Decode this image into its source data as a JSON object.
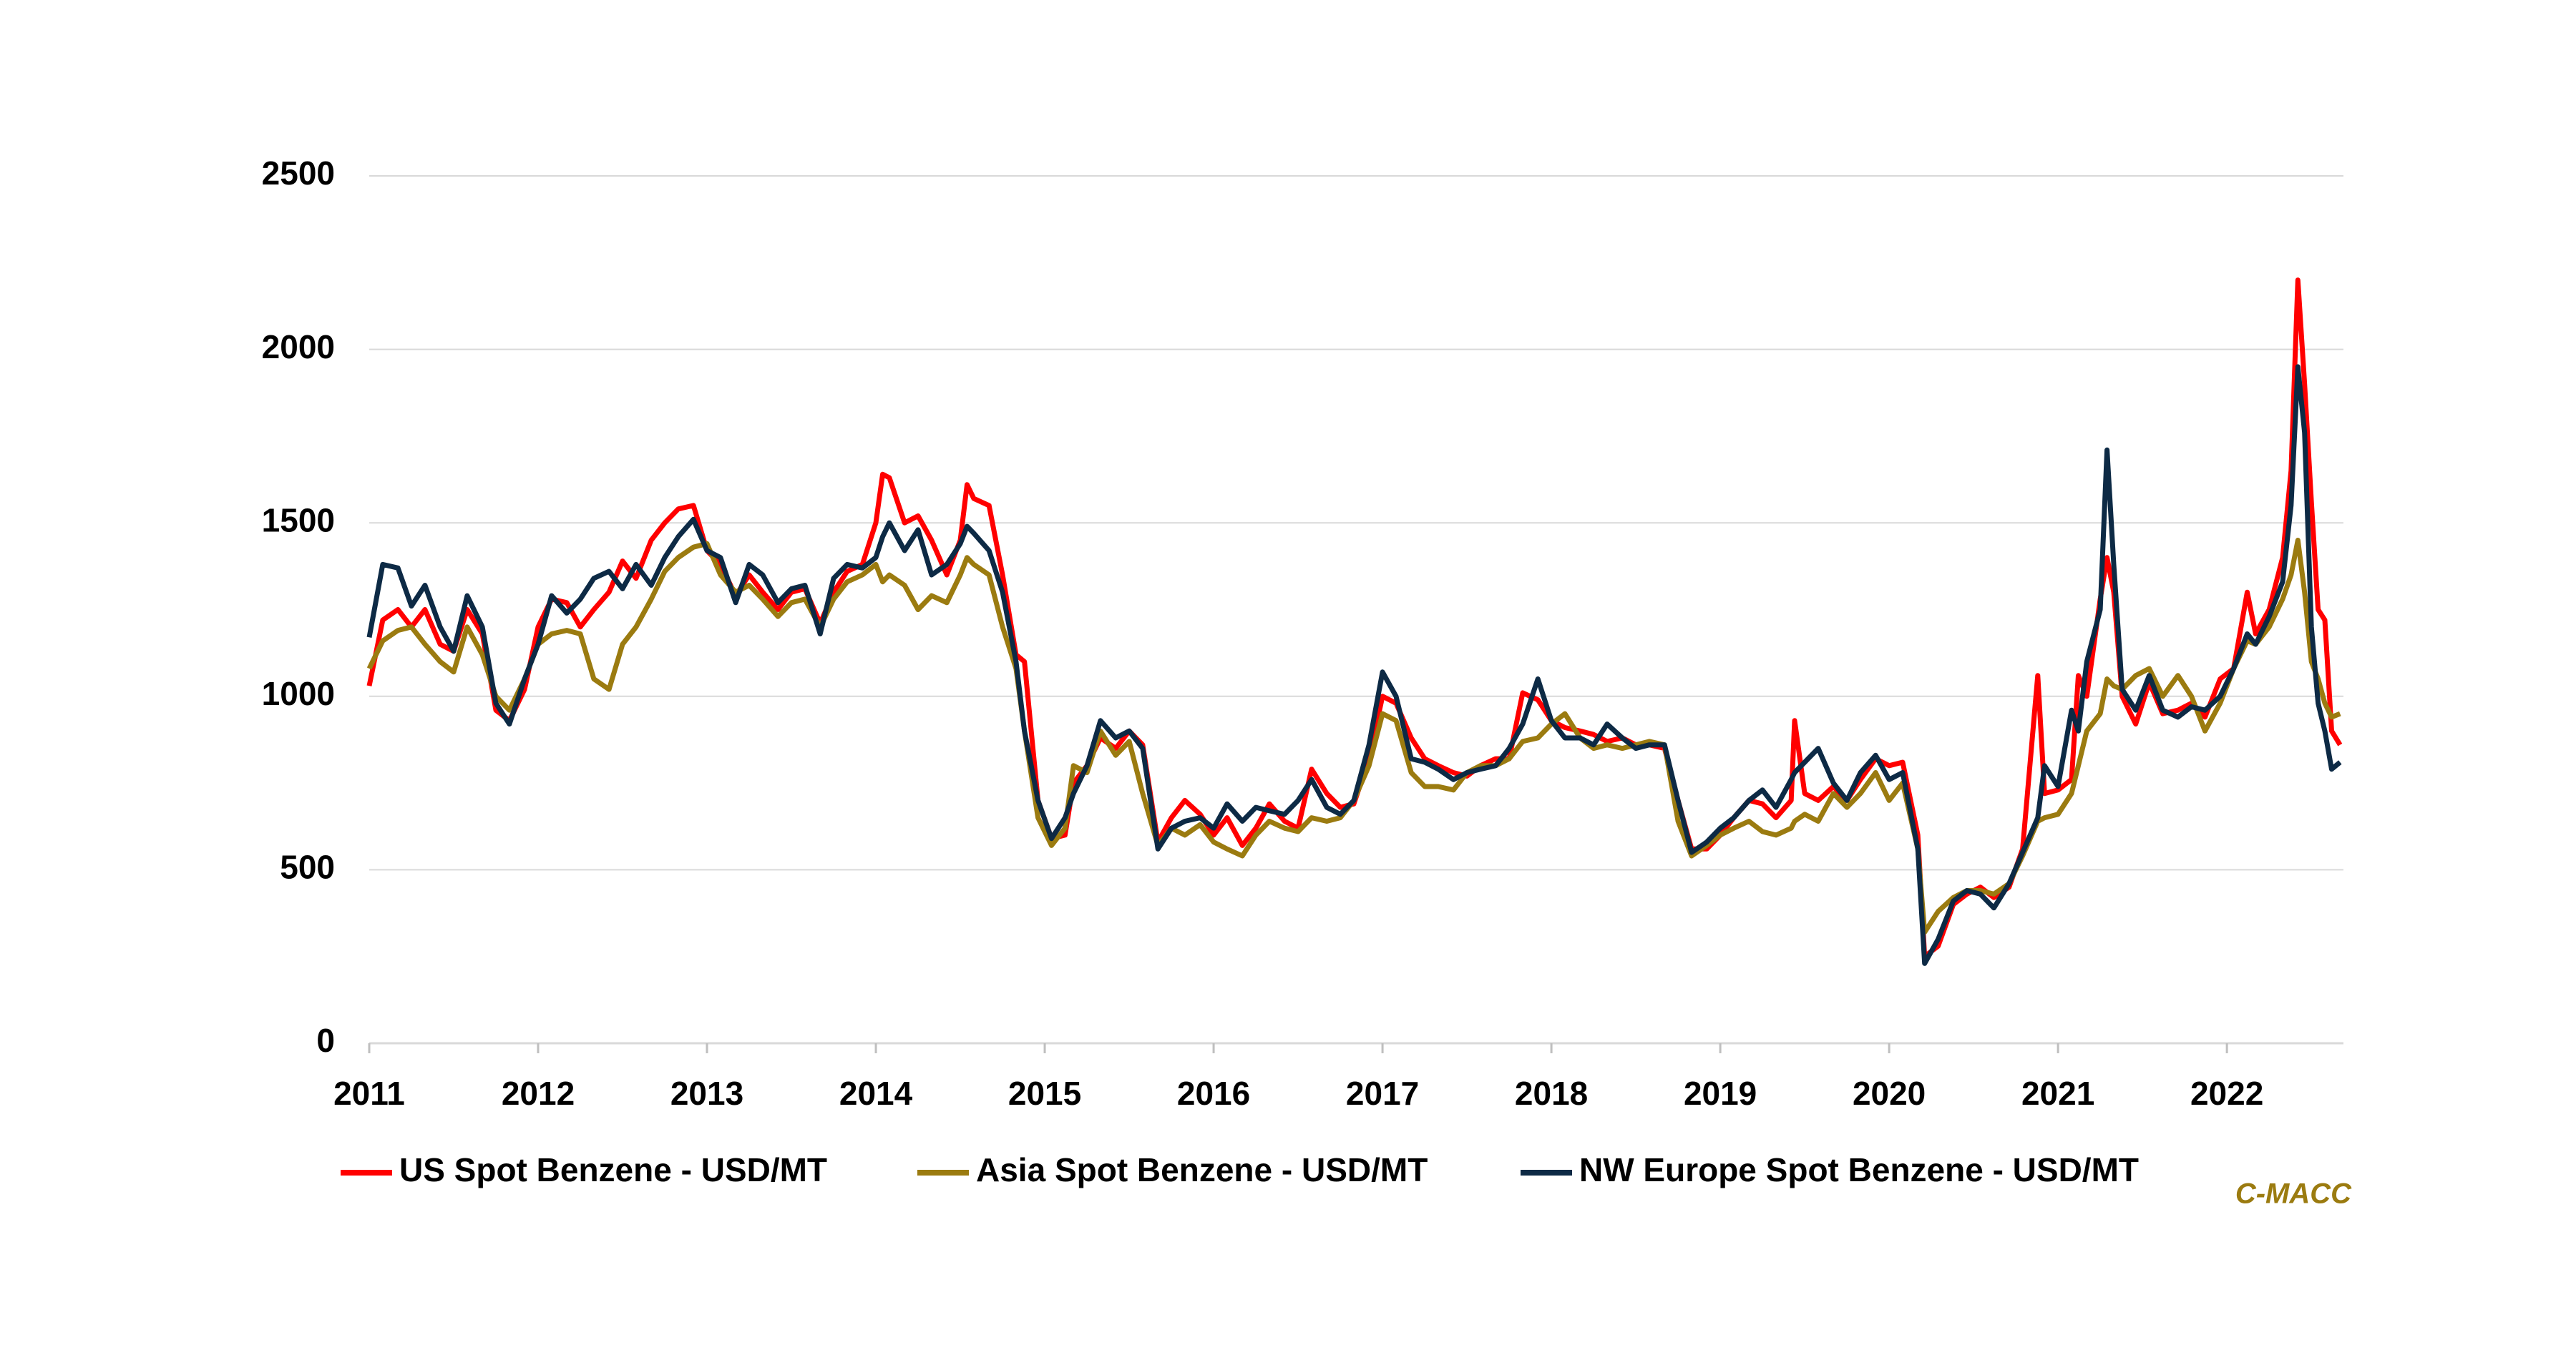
{
  "chart_data": {
    "type": "line",
    "source": "C-MACC",
    "x": [
      2011.0,
      2011.08,
      2011.17,
      2011.25,
      2011.33,
      2011.42,
      2011.5,
      2011.58,
      2011.67,
      2011.75,
      2011.83,
      2011.92,
      2012.0,
      2012.08,
      2012.17,
      2012.25,
      2012.33,
      2012.42,
      2012.5,
      2012.58,
      2012.67,
      2012.75,
      2012.83,
      2012.92,
      2013.0,
      2013.08,
      2013.17,
      2013.25,
      2013.33,
      2013.42,
      2013.5,
      2013.58,
      2013.67,
      2013.75,
      2013.83,
      2013.92,
      2014.0,
      2014.04,
      2014.08,
      2014.17,
      2014.25,
      2014.33,
      2014.42,
      2014.5,
      2014.54,
      2014.58,
      2014.67,
      2014.75,
      2014.83,
      2014.88,
      2014.96,
      2015.04,
      2015.12,
      2015.17,
      2015.25,
      2015.33,
      2015.42,
      2015.5,
      2015.58,
      2015.67,
      2015.75,
      2015.83,
      2015.92,
      2016.0,
      2016.08,
      2016.17,
      2016.25,
      2016.33,
      2016.42,
      2016.5,
      2016.58,
      2016.67,
      2016.75,
      2016.83,
      2016.92,
      2017.0,
      2017.08,
      2017.17,
      2017.25,
      2017.33,
      2017.42,
      2017.5,
      2017.58,
      2017.67,
      2017.75,
      2017.83,
      2017.92,
      2018.0,
      2018.08,
      2018.17,
      2018.25,
      2018.33,
      2018.42,
      2018.5,
      2018.58,
      2018.67,
      2018.75,
      2018.83,
      2018.92,
      2019.0,
      2019.08,
      2019.17,
      2019.25,
      2019.33,
      2019.42,
      2019.44,
      2019.5,
      2019.58,
      2019.67,
      2019.75,
      2019.83,
      2019.92,
      2020.0,
      2020.08,
      2020.17,
      2020.21,
      2020.29,
      2020.38,
      2020.46,
      2020.54,
      2020.62,
      2020.71,
      2020.79,
      2020.88,
      2020.92,
      2021.0,
      2021.08,
      2021.12,
      2021.17,
      2021.25,
      2021.29,
      2021.33,
      2021.38,
      2021.46,
      2021.54,
      2021.62,
      2021.71,
      2021.79,
      2021.87,
      2021.96,
      2022.04,
      2022.12,
      2022.17,
      2022.25,
      2022.33,
      2022.38,
      2022.42,
      2022.46,
      2022.5,
      2022.54,
      2022.58,
      2022.62,
      2022.67
    ],
    "series": [
      {
        "name": "US Spot Benzene - USD/MT",
        "color": "#ff0000",
        "values": [
          1030,
          1220,
          1250,
          1200,
          1250,
          1150,
          1130,
          1250,
          1180,
          960,
          930,
          1020,
          1200,
          1280,
          1270,
          1200,
          1250,
          1300,
          1390,
          1340,
          1450,
          1500,
          1540,
          1550,
          1420,
          1380,
          1290,
          1350,
          1300,
          1250,
          1300,
          1310,
          1210,
          1300,
          1360,
          1380,
          1500,
          1640,
          1630,
          1500,
          1520,
          1450,
          1350,
          1450,
          1610,
          1570,
          1550,
          1350,
          1120,
          1100,
          700,
          590,
          600,
          750,
          800,
          880,
          850,
          900,
          860,
          580,
          650,
          700,
          660,
          600,
          650,
          570,
          620,
          690,
          640,
          620,
          790,
          720,
          680,
          690,
          820,
          1000,
          980,
          880,
          820,
          800,
          780,
          770,
          800,
          820,
          820,
          1010,
          990,
          930,
          910,
          900,
          890,
          870,
          880,
          860,
          860,
          850,
          700,
          560,
          560,
          600,
          650,
          700,
          690,
          650,
          700,
          930,
          720,
          700,
          740,
          700,
          760,
          820,
          800,
          810,
          600,
          250,
          280,
          400,
          430,
          450,
          420,
          450,
          560,
          1060,
          720,
          730,
          760,
          1060,
          1000,
          1280,
          1400,
          1300,
          1000,
          920,
          1040,
          950,
          960,
          980,
          940,
          1050,
          1080,
          1300,
          1180,
          1250,
          1400,
          1650,
          2200,
          1900,
          1560,
          1250,
          1220,
          900,
          860
        ]
      },
      {
        "name": "Asia Spot Benzene - USD/MT",
        "color": "#9b7b10",
        "values": [
          1080,
          1160,
          1190,
          1200,
          1150,
          1100,
          1070,
          1200,
          1120,
          1000,
          960,
          1050,
          1150,
          1180,
          1190,
          1180,
          1050,
          1020,
          1150,
          1200,
          1280,
          1360,
          1400,
          1430,
          1440,
          1350,
          1300,
          1320,
          1280,
          1230,
          1270,
          1280,
          1200,
          1280,
          1330,
          1350,
          1380,
          1330,
          1350,
          1320,
          1250,
          1290,
          1270,
          1350,
          1400,
          1380,
          1350,
          1200,
          1080,
          900,
          650,
          570,
          620,
          800,
          780,
          900,
          830,
          870,
          720,
          570,
          620,
          600,
          630,
          580,
          560,
          540,
          600,
          640,
          620,
          610,
          650,
          640,
          650,
          700,
          800,
          950,
          930,
          780,
          740,
          740,
          730,
          780,
          800,
          800,
          820,
          870,
          880,
          920,
          950,
          880,
          850,
          860,
          850,
          860,
          870,
          860,
          640,
          540,
          570,
          600,
          620,
          640,
          610,
          600,
          620,
          640,
          660,
          640,
          720,
          680,
          720,
          780,
          700,
          750,
          560,
          320,
          380,
          420,
          440,
          440,
          430,
          460,
          540,
          640,
          650,
          660,
          720,
          800,
          900,
          950,
          1050,
          1030,
          1020,
          1060,
          1080,
          1000,
          1060,
          1000,
          900,
          980,
          1080,
          1160,
          1150,
          1200,
          1280,
          1350,
          1450,
          1300,
          1100,
          1050,
          980,
          940,
          950
        ]
      },
      {
        "name": "NW Europe Spot Benzene - USD/MT",
        "color": "#0d2a45",
        "values": [
          1170,
          1380,
          1370,
          1260,
          1320,
          1200,
          1130,
          1290,
          1200,
          980,
          920,
          1050,
          1150,
          1290,
          1240,
          1280,
          1340,
          1360,
          1310,
          1380,
          1320,
          1400,
          1460,
          1510,
          1420,
          1400,
          1270,
          1380,
          1350,
          1270,
          1310,
          1320,
          1180,
          1340,
          1380,
          1370,
          1400,
          1460,
          1500,
          1420,
          1480,
          1350,
          1380,
          1440,
          1490,
          1470,
          1420,
          1300,
          1100,
          900,
          700,
          590,
          650,
          720,
          800,
          930,
          880,
          900,
          850,
          560,
          620,
          640,
          650,
          620,
          690,
          640,
          680,
          670,
          660,
          700,
          760,
          680,
          660,
          700,
          860,
          1070,
          1000,
          820,
          810,
          790,
          760,
          780,
          790,
          800,
          850,
          920,
          1050,
          930,
          880,
          880,
          860,
          920,
          880,
          850,
          860,
          860,
          700,
          550,
          580,
          620,
          650,
          700,
          730,
          680,
          760,
          780,
          810,
          850,
          750,
          700,
          780,
          830,
          760,
          780,
          560,
          230,
          300,
          410,
          440,
          430,
          390,
          460,
          550,
          650,
          800,
          740,
          960,
          900,
          1100,
          1250,
          1710,
          1380,
          1020,
          960,
          1060,
          960,
          940,
          970,
          960,
          1000,
          1080,
          1180,
          1150,
          1230,
          1330,
          1550,
          1950,
          1760,
          1200,
          980,
          900,
          790,
          810
        ]
      }
    ],
    "xlim": [
      2011,
      2022.69
    ],
    "xticks": [
      2011,
      2012,
      2013,
      2014,
      2015,
      2016,
      2017,
      2018,
      2019,
      2020,
      2021,
      2022
    ],
    "ylim": [
      0,
      2500
    ],
    "yticks": [
      0,
      500,
      1000,
      1500,
      2000,
      2500
    ],
    "grid": true
  }
}
